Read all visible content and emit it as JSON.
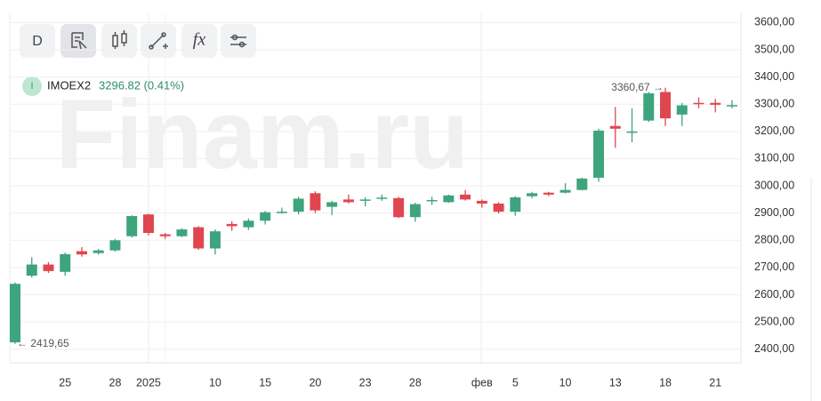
{
  "chart_data": {
    "type": "candlestick",
    "watermark": "Finam.ru",
    "toolbar": {
      "period": "D",
      "function": "fx"
    },
    "ticker": {
      "badge": "I",
      "name": "IMOEX2",
      "quote": "3296.82 (0.41%)"
    },
    "annotations": [
      {
        "text": "3360,67 →"
      },
      {
        "text": "← 2419,65"
      }
    ],
    "up_color": "#3ea47e",
    "down_color": "#e0464f",
    "categories": [
      null,
      null,
      null,
      "25",
      null,
      null,
      "28",
      null,
      "2025",
      null,
      null,
      null,
      "10",
      null,
      null,
      "15",
      null,
      null,
      "20",
      null,
      null,
      "23",
      null,
      null,
      "28",
      null,
      null,
      null,
      "фев",
      null,
      "5",
      null,
      null,
      "10",
      null,
      null,
      "13",
      null,
      null,
      "18",
      null,
      null,
      "21",
      null
    ],
    "open": [
      2425,
      2670,
      2711,
      2684,
      2760,
      2753,
      2763,
      2815,
      2895,
      2822,
      2815,
      2848,
      2770,
      2860,
      2848,
      2872,
      2900,
      2905,
      2973,
      2923,
      2950,
      2945,
      2955,
      2955,
      2885,
      2945,
      2940,
      2968,
      2945,
      2935,
      2905,
      2962,
      2975,
      2975,
      2985,
      3030,
      3220,
      3195,
      3240,
      3345,
      3262,
      3305,
      3305,
      3293
    ],
    "high": [
      2645,
      2738,
      2720,
      2755,
      2775,
      2768,
      2805,
      2892,
      2898,
      2827,
      2845,
      2852,
      2840,
      2870,
      2880,
      2908,
      2920,
      2960,
      2980,
      2945,
      2968,
      2958,
      2968,
      2960,
      2938,
      2960,
      2968,
      2985,
      2950,
      2940,
      2962,
      2978,
      2978,
      3010,
      3030,
      3210,
      3290,
      3285,
      3345,
      3360.67,
      3305,
      3325,
      3320,
      3315
    ],
    "low": [
      2419.65,
      2663,
      2680,
      2670,
      2740,
      2748,
      2758,
      2810,
      2818,
      2805,
      2812,
      2765,
      2748,
      2835,
      2838,
      2858,
      2898,
      2895,
      2900,
      2893,
      2935,
      2925,
      2945,
      2882,
      2868,
      2930,
      2938,
      2946,
      2920,
      2898,
      2890,
      2955,
      2962,
      2972,
      2983,
      3015,
      3140,
      3160,
      3235,
      3220,
      3220,
      3285,
      3270,
      3285
    ],
    "close": [
      2640,
      2711,
      2687,
      2749,
      2748,
      2763,
      2800,
      2889,
      2827,
      2815,
      2840,
      2770,
      2833,
      2852,
      2872,
      2903,
      2905,
      2953,
      2910,
      2940,
      2940,
      2950,
      2957,
      2885,
      2933,
      2948,
      2965,
      2950,
      2935,
      2905,
      2958,
      2973,
      2968,
      2985,
      3027,
      3203,
      3210,
      3200,
      3340,
      3248,
      3296,
      3300,
      3298,
      3296.82
    ],
    "ylim": [
      2350,
      3634
    ],
    "yticks": [
      {
        "value": 2400,
        "label": "2400,00"
      },
      {
        "value": 2500,
        "label": "2500,00"
      },
      {
        "value": 2600,
        "label": "2600,00"
      },
      {
        "value": 2700,
        "label": "2700,00"
      },
      {
        "value": 2800,
        "label": "2800,00"
      },
      {
        "value": 2900,
        "label": "2900,00"
      },
      {
        "value": 3000,
        "label": "3000,00"
      },
      {
        "value": 3100,
        "label": "3100,00"
      },
      {
        "value": 3200,
        "label": "3200,00"
      },
      {
        "value": 3300,
        "label": "3300,00"
      },
      {
        "value": 3400,
        "label": "3400,00"
      },
      {
        "value": 3500,
        "label": "3500,00"
      },
      {
        "value": 3600,
        "label": "3600,00"
      }
    ],
    "grid": true
  }
}
